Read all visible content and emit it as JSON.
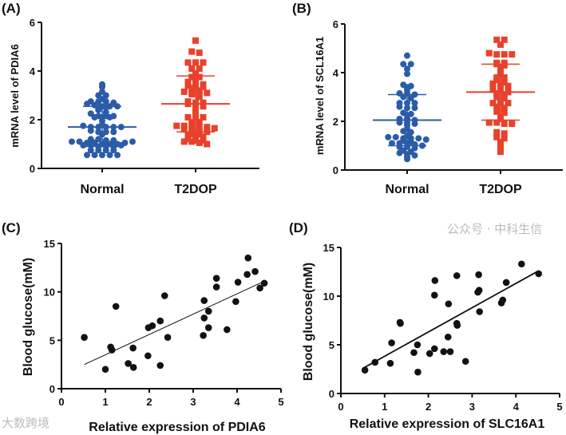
{
  "chart_data": [
    {
      "type": "scatter",
      "subtype": "dot-plot-mean-sd",
      "panel": "(A)",
      "ylabel": "mRNA level of PDIA6",
      "xlabel": "",
      "ylim": [
        0,
        6
      ],
      "yticks": [
        0,
        2,
        4,
        6
      ],
      "categories": [
        "Normal",
        "T2DOP"
      ],
      "series": [
        {
          "name": "Normal",
          "marker": "circle",
          "color": "#2b5ca8",
          "mean": 1.7,
          "sd_upper": 2.55,
          "sd_lower": 0.9,
          "values": [
            3.45,
            3.35,
            3.15,
            3.0,
            3.0,
            2.85,
            2.75,
            2.75,
            2.75,
            2.7,
            2.65,
            2.6,
            2.55,
            2.55,
            2.55,
            2.5,
            2.5,
            2.4,
            2.3,
            2.25,
            2.15,
            2.15,
            2.15,
            2.1,
            2.1,
            2.1,
            1.95,
            1.8,
            1.75,
            1.7,
            1.7,
            1.7,
            1.7,
            1.7,
            1.55,
            1.5,
            1.5,
            1.5,
            1.4,
            1.2,
            1.2,
            1.15,
            1.15,
            1.1,
            1.1,
            1.05,
            1.05,
            1.0,
            1.0,
            0.95,
            0.95,
            0.9,
            0.9,
            0.9,
            0.95,
            1.0,
            1.05,
            1.1,
            0.75,
            0.75,
            0.75,
            0.75,
            0.55,
            0.55,
            0.55,
            0.55,
            0.55
          ]
        },
        {
          "name": "T2DOP",
          "marker": "square",
          "color": "#e8412c",
          "mean": 2.65,
          "sd_upper": 3.8,
          "sd_lower": 1.5,
          "values": [
            5.25,
            4.8,
            4.75,
            4.35,
            4.35,
            4.35,
            4.1,
            4.1,
            3.9,
            3.75,
            3.75,
            3.6,
            3.55,
            3.55,
            3.45,
            3.4,
            3.35,
            3.35,
            3.3,
            3.2,
            3.15,
            3.1,
            3.1,
            3.1,
            3.05,
            2.95,
            2.75,
            2.7,
            2.7,
            2.65,
            2.6,
            2.55,
            2.35,
            2.15,
            2.1,
            2.1,
            2.1,
            1.9,
            1.9,
            1.75,
            1.75,
            1.75,
            1.7,
            1.7,
            1.65,
            1.6,
            1.55,
            1.55,
            1.5,
            1.4,
            1.4,
            1.35,
            1.35,
            1.3,
            1.2,
            1.15,
            1.15,
            1.1,
            1.1,
            1.05,
            1.0
          ]
        }
      ]
    },
    {
      "type": "scatter",
      "subtype": "dot-plot-mean-sd",
      "panel": "(B)",
      "ylabel": "mRNA level of SCL16A1",
      "xlabel": "",
      "ylim": [
        0,
        6
      ],
      "yticks": [
        0,
        2,
        4,
        6
      ],
      "categories": [
        "Normal",
        "T2DOP"
      ],
      "series": [
        {
          "name": "Normal",
          "marker": "circle",
          "color": "#2b5ca8",
          "mean": 2.05,
          "sd_upper": 3.1,
          "sd_lower": 1.0,
          "values": [
            4.7,
            4.35,
            4.35,
            4.15,
            3.95,
            3.5,
            3.45,
            3.4,
            3.3,
            3.15,
            3.15,
            3.1,
            3.0,
            2.95,
            2.75,
            2.75,
            2.75,
            2.6,
            2.55,
            2.55,
            2.35,
            2.3,
            2.25,
            2.1,
            2.1,
            2.05,
            1.95,
            1.95,
            1.9,
            1.85,
            1.7,
            1.6,
            1.55,
            1.4,
            1.35,
            1.35,
            1.3,
            1.3,
            1.3,
            1.25,
            1.2,
            1.15,
            1.1,
            1.1,
            1.1,
            1.05,
            1.0,
            0.95,
            0.95,
            0.9,
            0.8,
            0.75,
            0.7,
            0.65,
            0.6,
            0.55,
            0.45
          ]
        },
        {
          "name": "T2DOP",
          "marker": "square",
          "color": "#e8412c",
          "mean": 3.2,
          "sd_upper": 4.35,
          "sd_lower": 2.05,
          "values": [
            5.35,
            5.35,
            5.15,
            4.8,
            4.75,
            4.75,
            4.75,
            4.4,
            4.4,
            4.35,
            4.3,
            4.15,
            3.95,
            3.8,
            3.8,
            3.7,
            3.6,
            3.55,
            3.5,
            3.45,
            3.4,
            3.35,
            3.35,
            3.3,
            3.25,
            3.2,
            3.15,
            3.1,
            3.0,
            2.95,
            2.8,
            2.75,
            2.75,
            2.75,
            2.6,
            2.55,
            2.4,
            2.35,
            2.2,
            2.1,
            1.95,
            1.95,
            1.9,
            1.9,
            1.55,
            1.5,
            1.35,
            1.3,
            1.15,
            1.05,
            0.95,
            0.75
          ]
        }
      ]
    },
    {
      "type": "scatter",
      "panel": "(C)",
      "xlabel": "Relative expression of PDIA6",
      "ylabel": "Blood glucose(mM)",
      "xlim": [
        0,
        5
      ],
      "ylim": [
        0,
        15
      ],
      "xticks": [
        0,
        1,
        2,
        3,
        4,
        5
      ],
      "yticks": [
        0,
        5,
        10,
        15
      ],
      "color": "#111111",
      "points": [
        [
          0.52,
          5.3
        ],
        [
          1.0,
          2.0
        ],
        [
          1.12,
          4.3
        ],
        [
          1.15,
          4.0
        ],
        [
          1.24,
          8.5
        ],
        [
          1.52,
          2.6
        ],
        [
          1.63,
          4.2
        ],
        [
          1.64,
          2.2
        ],
        [
          1.97,
          3.4
        ],
        [
          1.98,
          6.3
        ],
        [
          2.07,
          6.5
        ],
        [
          2.25,
          7.0
        ],
        [
          2.25,
          2.4
        ],
        [
          2.35,
          9.6
        ],
        [
          2.42,
          5.3
        ],
        [
          3.23,
          5.5
        ],
        [
          3.25,
          7.3
        ],
        [
          3.25,
          9.1
        ],
        [
          3.35,
          8.0
        ],
        [
          3.35,
          6.3
        ],
        [
          3.53,
          11.4
        ],
        [
          3.53,
          10.5
        ],
        [
          3.77,
          6.1
        ],
        [
          3.97,
          9.0
        ],
        [
          4.02,
          11.0
        ],
        [
          4.23,
          11.8
        ],
        [
          4.25,
          13.5
        ],
        [
          4.41,
          12.1
        ],
        [
          4.52,
          10.4
        ],
        [
          4.62,
          10.9
        ]
      ],
      "fit_line": [
        [
          0.52,
          2.5
        ],
        [
          4.62,
          11.1
        ]
      ]
    },
    {
      "type": "scatter",
      "panel": "(D)",
      "xlabel": "Relative expression of SLC16A1",
      "ylabel": "Blood glucose(mM)",
      "xlim": [
        0,
        5
      ],
      "ylim": [
        0,
        15
      ],
      "xticks": [
        0,
        1,
        2,
        3,
        4,
        5
      ],
      "yticks": [
        0,
        5,
        10,
        15
      ],
      "color": "#111111",
      "points": [
        [
          0.55,
          2.4
        ],
        [
          0.78,
          3.2
        ],
        [
          1.13,
          3.1
        ],
        [
          1.16,
          5.2
        ],
        [
          1.35,
          7.3
        ],
        [
          1.36,
          7.2
        ],
        [
          1.67,
          4.2
        ],
        [
          1.75,
          5.0
        ],
        [
          1.76,
          2.2
        ],
        [
          2.03,
          4.1
        ],
        [
          2.14,
          4.6
        ],
        [
          2.14,
          10.1
        ],
        [
          2.15,
          11.6
        ],
        [
          2.35,
          4.3
        ],
        [
          2.45,
          5.8
        ],
        [
          2.46,
          9.2
        ],
        [
          2.5,
          4.3
        ],
        [
          2.65,
          12.1
        ],
        [
          2.65,
          7.2
        ],
        [
          2.66,
          7.0
        ],
        [
          2.85,
          3.3
        ],
        [
          3.13,
          10.4
        ],
        [
          3.15,
          12.2
        ],
        [
          3.16,
          10.6
        ],
        [
          3.17,
          8.4
        ],
        [
          3.67,
          9.3
        ],
        [
          3.7,
          9.6
        ],
        [
          3.78,
          11.4
        ],
        [
          4.13,
          13.3
        ],
        [
          4.52,
          12.3
        ]
      ],
      "fit_line": [
        [
          0.55,
          2.7
        ],
        [
          4.52,
          12.6
        ]
      ]
    }
  ],
  "watermarks": [
    "大数跨境",
    "公众号 · 中科生信"
  ]
}
